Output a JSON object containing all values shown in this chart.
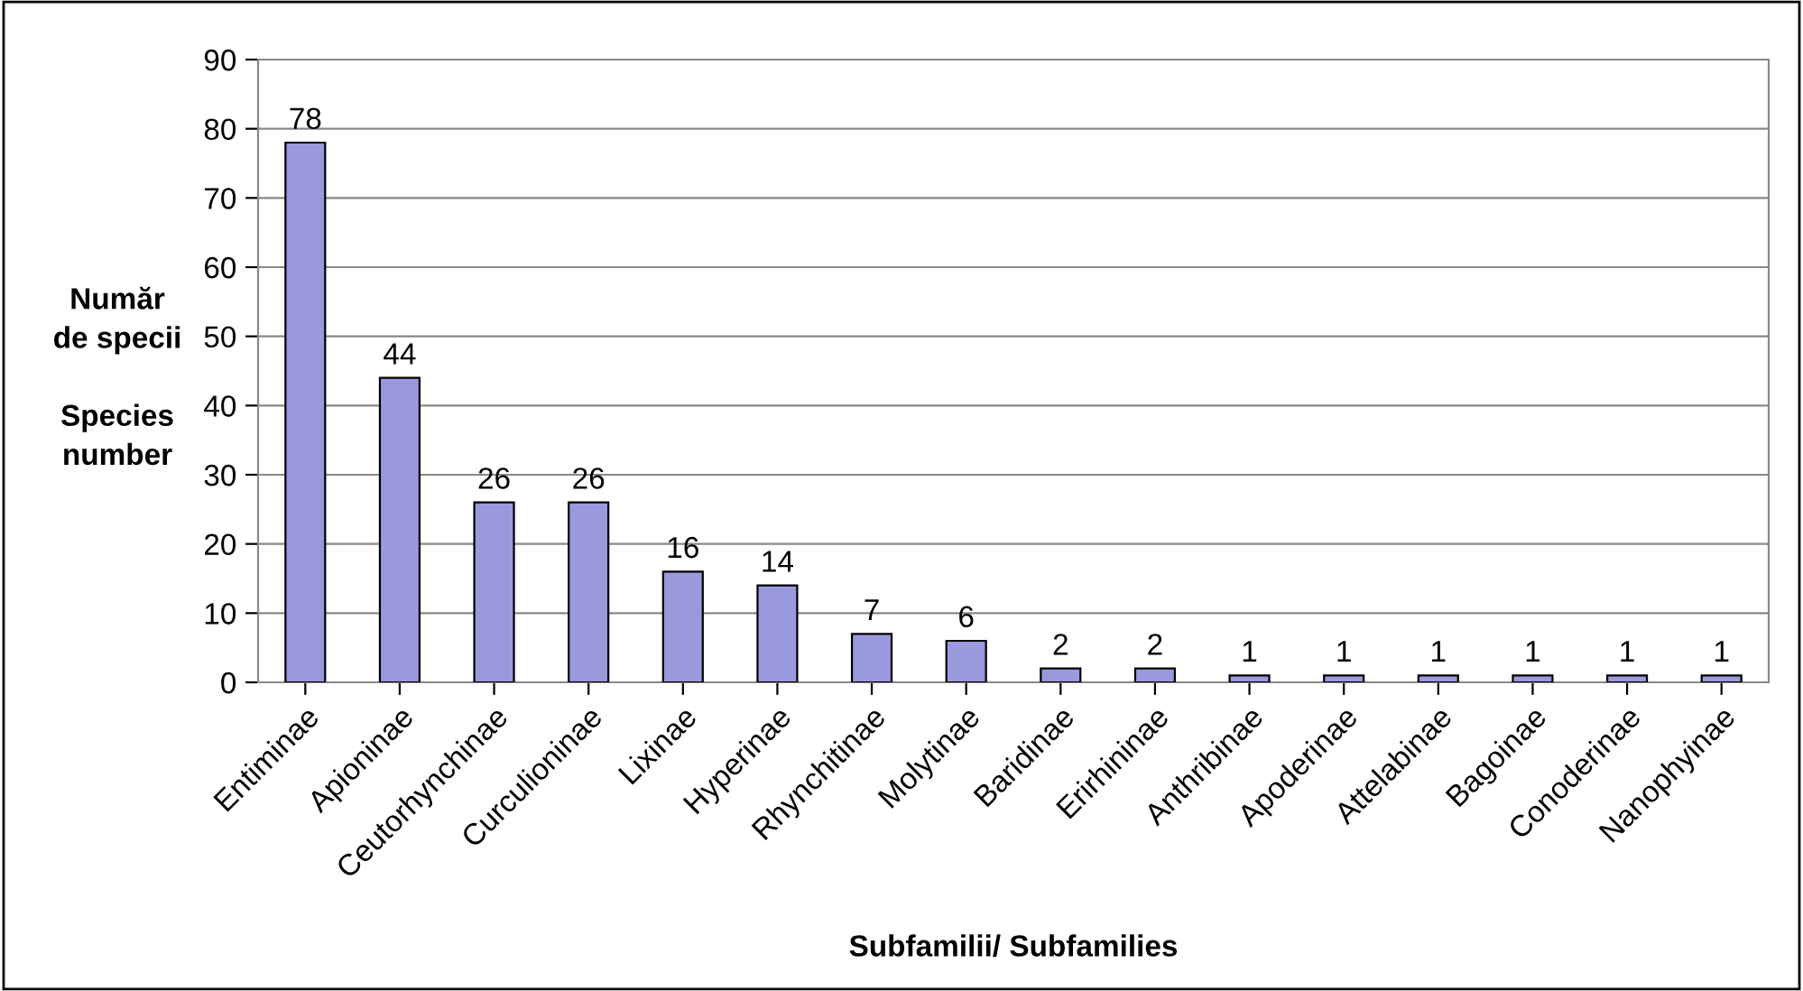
{
  "chart_data": {
    "type": "bar",
    "xlabel": "Subfamilii/ Subfamilies",
    "ylabel": "Număr\nde specii\n\nSpecies\nnumber",
    "categories": [
      "Entiminae",
      "Apioninae",
      "Ceutorhynchinae",
      "Curculioninae",
      "Lixinae",
      "Hyperinae",
      "Rhynchitinae",
      "Molytinae",
      "Baridinae",
      "Erirhininae",
      "Anthribinae",
      "Apoderinae",
      "Attelabinae",
      "Bagoinae",
      "Conoderinae",
      "Nanophyinae"
    ],
    "values": [
      78,
      44,
      26,
      26,
      16,
      14,
      7,
      6,
      2,
      2,
      1,
      1,
      1,
      1,
      1,
      1
    ],
    "color": "#9999dd",
    "ylim": [
      0,
      90
    ],
    "yticks": [
      0,
      10,
      20,
      30,
      40,
      50,
      60,
      70,
      80,
      90
    ],
    "grid": "y",
    "data_labels": true
  }
}
